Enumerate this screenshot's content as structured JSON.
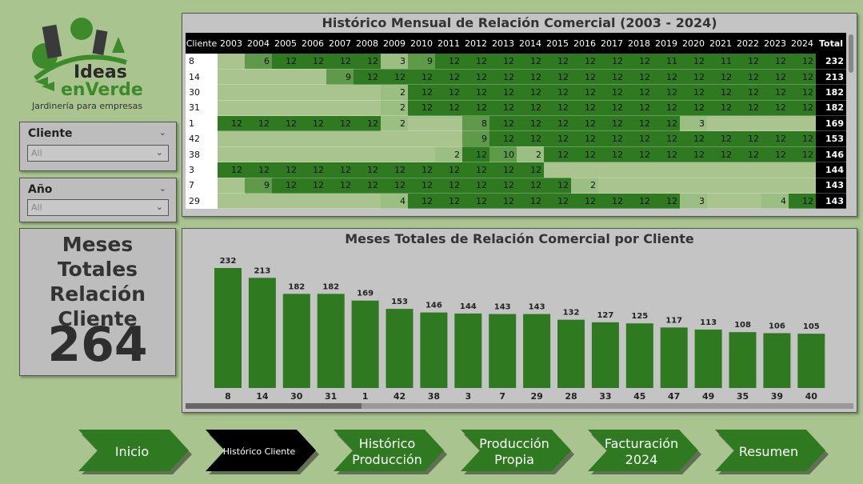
{
  "logo": {
    "line1": "Ideas",
    "line2": "enVerde",
    "tagline": "Jardinería para empresas"
  },
  "slicers": [
    {
      "title": "Cliente",
      "value": "All"
    },
    {
      "title": "Año",
      "value": "All"
    }
  ],
  "kpi": {
    "title": "Meses Totales Relación Cliente",
    "value": "264"
  },
  "matrix": {
    "title": "Histórico Mensual de Relación Comercial (2003 - 2024)",
    "client_header": "Cliente",
    "years": [
      "2003",
      "2004",
      "2005",
      "2006",
      "2007",
      "2008",
      "2009",
      "2010",
      "2011",
      "2012",
      "2013",
      "2014",
      "2015",
      "2016",
      "2017",
      "2018",
      "2019",
      "2020",
      "2021",
      "2022",
      "2023",
      "2024"
    ],
    "total_header": "Total",
    "rows": [
      {
        "client": "8",
        "values": [
          null,
          6,
          12,
          12,
          12,
          12,
          3,
          9,
          12,
          12,
          12,
          12,
          12,
          12,
          12,
          12,
          11,
          12,
          11,
          12,
          12,
          12
        ],
        "total": "232"
      },
      {
        "client": "14",
        "values": [
          null,
          null,
          null,
          null,
          9,
          12,
          12,
          12,
          12,
          12,
          12,
          12,
          12,
          12,
          12,
          12,
          12,
          12,
          12,
          12,
          12,
          12
        ],
        "total": "213"
      },
      {
        "client": "30",
        "values": [
          null,
          null,
          null,
          null,
          null,
          null,
          2,
          12,
          12,
          12,
          12,
          12,
          12,
          12,
          12,
          12,
          12,
          12,
          12,
          12,
          12,
          12
        ],
        "total": "182"
      },
      {
        "client": "31",
        "values": [
          null,
          null,
          null,
          null,
          null,
          null,
          2,
          12,
          12,
          12,
          12,
          12,
          12,
          12,
          12,
          12,
          12,
          12,
          12,
          12,
          12,
          12
        ],
        "total": "182"
      },
      {
        "client": "1",
        "values": [
          12,
          12,
          12,
          12,
          12,
          12,
          2,
          null,
          null,
          8,
          12,
          12,
          12,
          12,
          12,
          12,
          12,
          3,
          null,
          null,
          null,
          null
        ],
        "total": "169"
      },
      {
        "client": "42",
        "values": [
          null,
          null,
          null,
          null,
          null,
          null,
          null,
          null,
          null,
          9,
          12,
          12,
          12,
          12,
          12,
          12,
          12,
          12,
          12,
          12,
          12,
          12
        ],
        "total": "153"
      },
      {
        "client": "38",
        "values": [
          null,
          null,
          null,
          null,
          null,
          null,
          null,
          null,
          2,
          12,
          10,
          2,
          12,
          12,
          12,
          12,
          12,
          12,
          12,
          12,
          12,
          12
        ],
        "total": "146"
      },
      {
        "client": "3",
        "values": [
          12,
          12,
          12,
          12,
          12,
          12,
          12,
          12,
          12,
          12,
          12,
          12,
          null,
          null,
          null,
          null,
          null,
          null,
          null,
          null,
          null,
          null
        ],
        "total": "144"
      },
      {
        "client": "7",
        "values": [
          null,
          9,
          12,
          12,
          12,
          12,
          12,
          12,
          12,
          12,
          12,
          12,
          12,
          2,
          null,
          null,
          null,
          null,
          null,
          null,
          null,
          null
        ],
        "total": "143"
      },
      {
        "client": "29",
        "values": [
          null,
          null,
          null,
          null,
          null,
          null,
          4,
          12,
          12,
          12,
          12,
          12,
          12,
          12,
          12,
          12,
          12,
          3,
          null,
          null,
          4,
          12
        ],
        "total": "143"
      }
    ],
    "colors": {
      "full": "#2f7a20",
      "mid": "#5f9a4b",
      "low": "#9bbe82",
      "empty": "#a9c48f"
    }
  },
  "chart_data": {
    "type": "bar",
    "title": "Meses Totales de Relación Comercial por Cliente",
    "categories": [
      "8",
      "14",
      "30",
      "31",
      "1",
      "42",
      "38",
      "3",
      "7",
      "29",
      "28",
      "33",
      "45",
      "47",
      "49",
      "35",
      "39",
      "40"
    ],
    "values": [
      232,
      213,
      182,
      182,
      169,
      153,
      146,
      144,
      143,
      143,
      132,
      127,
      125,
      117,
      113,
      108,
      106,
      105
    ],
    "ylim": [
      0,
      232
    ],
    "bar_color": "#2f7a20",
    "grid": false
  },
  "nav": [
    {
      "label": "Inicio",
      "active": false
    },
    {
      "label": "Histórico Cliente",
      "active": true
    },
    {
      "label": "Histórico Producción",
      "active": false
    },
    {
      "label": "Producción Propia",
      "active": false
    },
    {
      "label": "Facturación 2024",
      "active": false
    },
    {
      "label": "Resumen",
      "active": false
    }
  ]
}
